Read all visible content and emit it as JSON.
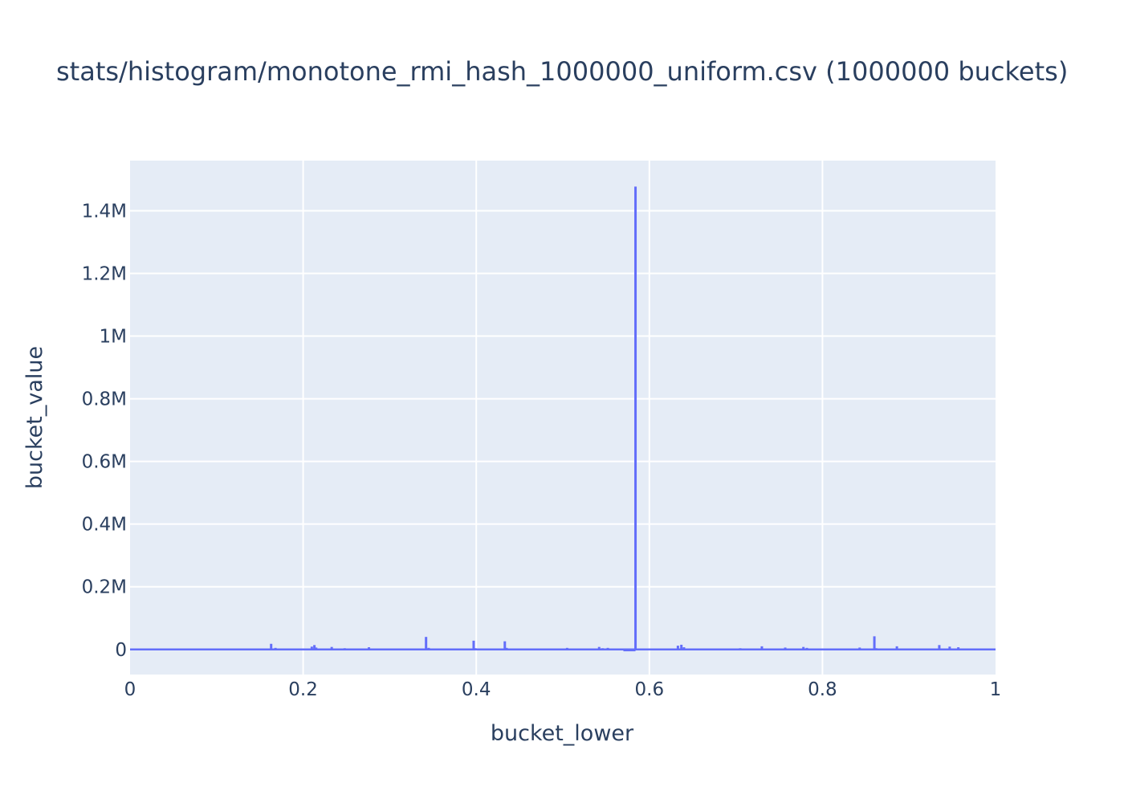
{
  "chart_data": {
    "type": "line",
    "title": "stats/histogram/monotone_rmi_hash_1000000_uniform.csv (1000000 buckets)",
    "xlabel": "bucket_lower",
    "ylabel": "bucket_value",
    "xlim": [
      0,
      1
    ],
    "ylim": [
      -80000,
      1560000
    ],
    "grid": true,
    "legend": "none",
    "line_shape": "hv",
    "colors": {
      "series": "#636efa",
      "plot_bg": "#e5ecf6",
      "grid": "#ffffff",
      "text": "#2a3f5f"
    },
    "x_ticks": [
      {
        "value": 0,
        "label": "0"
      },
      {
        "value": 0.2,
        "label": "0.2"
      },
      {
        "value": 0.4,
        "label": "0.4"
      },
      {
        "value": 0.6,
        "label": "0.6"
      },
      {
        "value": 0.8,
        "label": "0.8"
      },
      {
        "value": 1,
        "label": "1"
      }
    ],
    "y_ticks": [
      {
        "value": 0,
        "label": "0"
      },
      {
        "value": 200000,
        "label": "0.2M"
      },
      {
        "value": 400000,
        "label": "0.4M"
      },
      {
        "value": 600000,
        "label": "0.6M"
      },
      {
        "value": 800000,
        "label": "0.8M"
      },
      {
        "value": 1000000,
        "label": "1M"
      },
      {
        "value": 1200000,
        "label": "1.2M"
      },
      {
        "value": 1400000,
        "label": "1.4M"
      }
    ],
    "baseline_value": 1,
    "baseline_range": [
      0,
      1
    ],
    "series": [
      {
        "x": [
          0.163,
          0.168,
          0.21,
          0.213,
          0.215,
          0.233,
          0.248,
          0.276,
          0.278,
          0.342,
          0.345,
          0.397,
          0.399,
          0.433,
          0.435,
          0.505,
          0.542,
          0.546,
          0.552,
          0.584,
          0.585,
          0.586,
          0.633,
          0.637,
          0.64,
          0.705,
          0.73,
          0.757,
          0.778,
          0.782,
          0.843,
          0.86,
          0.862,
          0.886,
          0.935,
          0.947,
          0.957
        ],
        "y": [
          18000,
          5000,
          9000,
          14000,
          6000,
          8000,
          4000,
          7000,
          3000,
          40000,
          5000,
          28000,
          4000,
          26000,
          5000,
          5000,
          8000,
          4000,
          5000,
          1477000,
          2000,
          0,
          12000,
          15000,
          7000,
          4000,
          10000,
          6000,
          8000,
          5000,
          6000,
          42000,
          4000,
          10000,
          14000,
          9000,
          7000
        ]
      }
    ]
  }
}
